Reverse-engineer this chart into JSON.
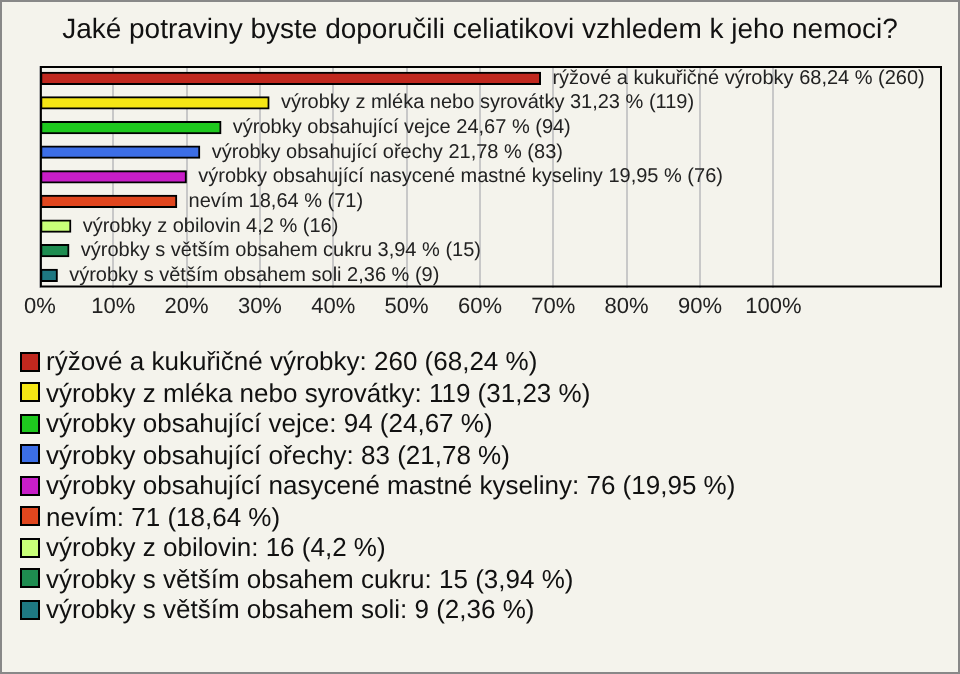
{
  "chart_data": {
    "type": "bar",
    "orientation": "horizontal",
    "title": "Jaké potraviny byste doporučili celiatikovi vzhledem k jeho nemoci?",
    "categories": [
      null,
      null,
      null,
      null,
      null,
      null,
      null,
      null,
      null
    ],
    "values": [
      68.24,
      31.23,
      24.67,
      21.78,
      19.95,
      18.64,
      4.2,
      3.94,
      2.36
    ],
    "colors": [
      "#c0281e",
      "#f5e614",
      "#1ec81e",
      "#3c6ee6",
      "#c81ec8",
      "#e0461e",
      "#c8ff78",
      "#1e8c50",
      "#1e7882"
    ],
    "value_labels": [
      "rýžové a kukuřičné výrobky 68,24 % (260)",
      "výrobky z mléka nebo syrovátky 31,23 % (119)",
      "výrobky obsahující vejce 24,67 % (94)",
      "výrobky obsahující ořechy 21,78 % (83)",
      "výrobky obsahující nasycené mastné kyseliny 19,95 % (76)",
      "nevím 18,64 % (71)",
      "výrobky z obilovin 4,2 % (16)",
      "výrobky s větším obsahem cukru 3,94 % (15)",
      "výrobky s větším obsahem soli 2,36 % (9)"
    ],
    "annotations": [
      "rýžové a kukuřičné výrobky: 260 (68,24 %)",
      "výrobky z mléka nebo syrovátky: 119 (31,23 %)",
      "výrobky obsahující vejce: 94 (24,67 %)",
      "výrobky obsahující ořechy: 83 (21,78 %)",
      "výrobky obsahující nasycené mastné kyseliny: 76 (19,95 %)",
      "nevím: 71 (18,64 %)",
      "výrobky z obilovin: 16 (4,2 %)",
      "výrobky s větším obsahem cukru: 15 (3,94 %)",
      "výrobky s větším obsahem soli: 9 (2,36 %)"
    ],
    "xlim": [
      0,
      123
    ],
    "xticks": [
      {
        "value": 0,
        "label": "0%"
      },
      {
        "value": 10,
        "label": "10%"
      },
      {
        "value": 20,
        "label": "20%"
      },
      {
        "value": 30,
        "label": "30%"
      },
      {
        "value": 40,
        "label": "40%"
      },
      {
        "value": 50,
        "label": "50%"
      },
      {
        "value": 60,
        "label": "60%"
      },
      {
        "value": 70,
        "label": "70%"
      },
      {
        "value": 80,
        "label": "80%"
      },
      {
        "value": 90,
        "label": "90%"
      },
      {
        "value": 100,
        "label": "100%"
      }
    ],
    "grid": "x",
    "tick_labels": "x"
  }
}
